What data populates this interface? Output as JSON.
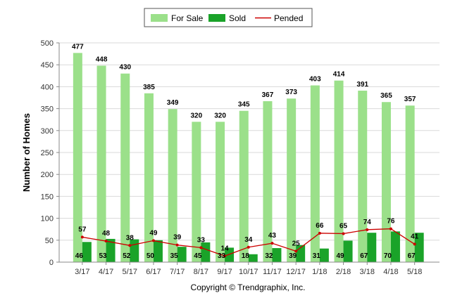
{
  "chart_data": {
    "type": "bar",
    "categories": [
      "3/17",
      "4/17",
      "5/17",
      "6/17",
      "7/17",
      "8/17",
      "9/17",
      "10/17",
      "11/17",
      "12/17",
      "1/18",
      "2/18",
      "3/18",
      "4/18",
      "5/18"
    ],
    "series": [
      {
        "name": "For Sale",
        "type": "bar",
        "color": "#9be08a",
        "values": [
          477,
          448,
          430,
          385,
          349,
          320,
          320,
          345,
          367,
          373,
          403,
          414,
          391,
          365,
          357
        ]
      },
      {
        "name": "Sold",
        "type": "bar",
        "color": "#1aa329",
        "values": [
          46,
          53,
          52,
          50,
          35,
          45,
          33,
          18,
          32,
          39,
          31,
          49,
          67,
          70,
          67
        ]
      },
      {
        "name": "Pended",
        "type": "line",
        "color": "#cc0000",
        "values": [
          57,
          48,
          38,
          49,
          39,
          33,
          14,
          34,
          43,
          25,
          66,
          65,
          74,
          76,
          41
        ]
      }
    ],
    "ylabel": "Number of Homes",
    "ylim": [
      0,
      500
    ],
    "yticks": [
      0,
      50,
      100,
      150,
      200,
      250,
      300,
      350,
      400,
      450,
      500
    ],
    "grid": true,
    "legend": "top-center"
  },
  "footer": {
    "copyright": "Copyright © Trendgraphix, Inc."
  }
}
